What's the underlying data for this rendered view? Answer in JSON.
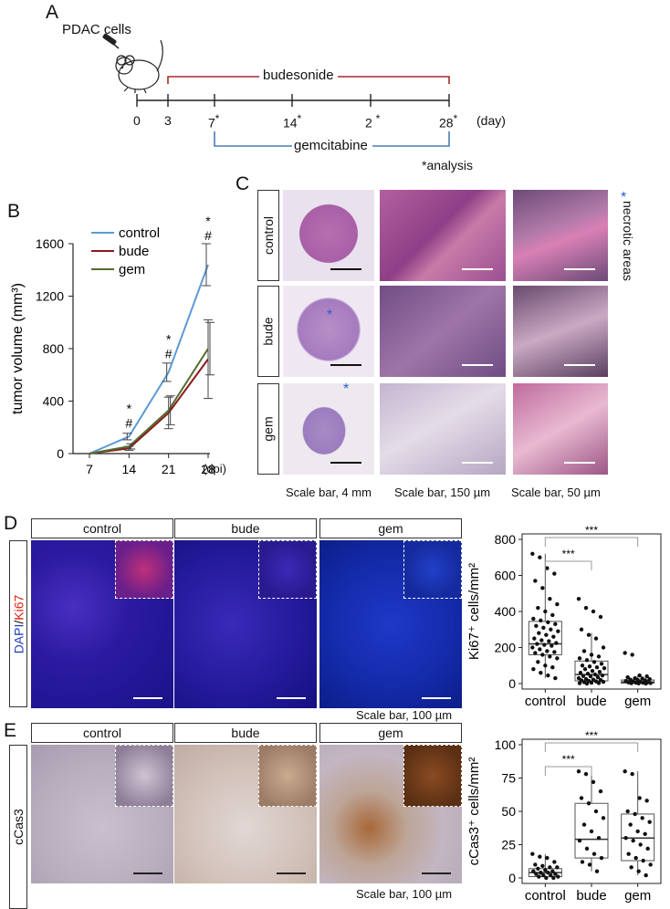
{
  "panelA": {
    "label": "A",
    "cells_label": "PDAC cells",
    "bude_label": "budesonide",
    "gem_label": "gemcitabine",
    "analysis_note": "*analysis",
    "day_unit": "(day)",
    "ticks": [
      {
        "text": "0",
        "star": false
      },
      {
        "text": "3",
        "star": false
      },
      {
        "text": "7",
        "star": true
      },
      {
        "text": "14",
        "star": true
      },
      {
        "text": "2",
        "star": true
      },
      {
        "text": "28",
        "star": true
      }
    ]
  },
  "panelB": {
    "label": "B",
    "unit": "(dpi)",
    "significance_marks": [
      "*",
      "#"
    ],
    "chart_data": {
      "type": "line",
      "x": [
        7,
        14,
        21,
        28
      ],
      "ylabel": "tumor volume (mm³)",
      "ylim": [
        0,
        1600
      ],
      "yticks": [
        0,
        400,
        800,
        1200,
        1600
      ],
      "legend_placement": "top-left",
      "series": [
        {
          "name": "control",
          "color": "#5b9bd5",
          "values": [
            0,
            130,
            620,
            1440
          ],
          "err": [
            0,
            25,
            70,
            160
          ]
        },
        {
          "name": "bude",
          "color": "#8b1a1a",
          "values": [
            0,
            40,
            310,
            720
          ],
          "err": [
            0,
            15,
            120,
            300
          ]
        },
        {
          "name": "gem",
          "color": "#556b2f",
          "values": [
            0,
            55,
            330,
            800
          ],
          "err": [
            0,
            20,
            110,
            200
          ]
        }
      ]
    }
  },
  "panelC": {
    "label": "C",
    "rows": [
      "control",
      "bude",
      "gem"
    ],
    "necrotic_label": "necrotic areas",
    "scale_bars": [
      "Scale bar, 4 mm",
      "Scale bar, 150 µm",
      "Scale bar, 50 µm"
    ]
  },
  "panelD": {
    "label": "D",
    "columns": [
      "control",
      "bude",
      "gem"
    ],
    "stain_dapi": "DAPI",
    "stain_sep": "/",
    "stain_marker": "Ki67",
    "scale_bar": "Scale bar, 100 µm",
    "significance": "***",
    "chart_data": {
      "type": "scatter",
      "categories": [
        "control",
        "bude",
        "gem"
      ],
      "ylabel": "Ki67⁺ cells/mm²",
      "ylim": [
        0,
        800
      ],
      "yticks": [
        0,
        200,
        400,
        600,
        800
      ],
      "box": [
        {
          "q1": 160,
          "median": 220,
          "q3": 345,
          "low": 30,
          "high": 720
        },
        {
          "q1": 15,
          "median": 50,
          "q3": 125,
          "low": 0,
          "high": 280
        },
        {
          "q1": 2,
          "median": 8,
          "q3": 20,
          "low": 0,
          "high": 45
        }
      ],
      "points": [
        [
          720,
          700,
          640,
          610,
          570,
          530,
          470,
          440,
          420,
          400,
          380,
          360,
          350,
          340,
          330,
          320,
          310,
          300,
          290,
          280,
          270,
          260,
          250,
          240,
          235,
          225,
          220,
          215,
          210,
          200,
          190,
          180,
          175,
          170,
          160,
          150,
          140,
          120,
          100,
          90,
          80,
          60,
          45,
          30
        ],
        [
          470,
          420,
          400,
          370,
          300,
          270,
          250,
          200,
          180,
          160,
          150,
          140,
          130,
          120,
          110,
          100,
          95,
          90,
          85,
          80,
          70,
          65,
          60,
          55,
          50,
          45,
          42,
          40,
          35,
          30,
          25,
          22,
          20,
          18,
          15,
          12,
          10,
          8,
          5,
          3,
          2,
          0
        ],
        [
          170,
          160,
          45,
          40,
          35,
          30,
          28,
          25,
          22,
          20,
          18,
          15,
          12,
          10,
          8,
          6,
          5,
          4,
          3,
          2,
          1,
          0
        ]
      ]
    }
  },
  "panelE": {
    "label": "E",
    "columns": [
      "control",
      "bude",
      "gem"
    ],
    "stain": "cCas3",
    "scale_bar": "Scale bar, 100 µm",
    "significance": "***",
    "chart_data": {
      "type": "scatter",
      "categories": [
        "control",
        "bude",
        "gem"
      ],
      "ylabel": "cCas3⁺ cells/mm²",
      "ylim": [
        0,
        100
      ],
      "yticks": [
        0,
        25,
        50,
        75,
        100
      ],
      "box": [
        {
          "q1": 1,
          "median": 4,
          "q3": 7,
          "low": 0,
          "high": 18
        },
        {
          "q1": 15,
          "median": 29,
          "q3": 56,
          "low": 5,
          "high": 80
        },
        {
          "q1": 13,
          "median": 30,
          "q3": 48,
          "low": 2,
          "high": 80
        }
      ],
      "points": [
        [
          18,
          16,
          15,
          12,
          10,
          9,
          8,
          8,
          7,
          6,
          5,
          5,
          4,
          4,
          3,
          3,
          2,
          2,
          1,
          1,
          0,
          0
        ],
        [
          80,
          78,
          72,
          65,
          60,
          56,
          50,
          45,
          40,
          35,
          30,
          28,
          22,
          18,
          15,
          12,
          10,
          5
        ],
        [
          80,
          78,
          60,
          58,
          50,
          48,
          45,
          42,
          40,
          35,
          33,
          30,
          28,
          25,
          22,
          18,
          15,
          13,
          10,
          8,
          5,
          2
        ]
      ]
    }
  }
}
